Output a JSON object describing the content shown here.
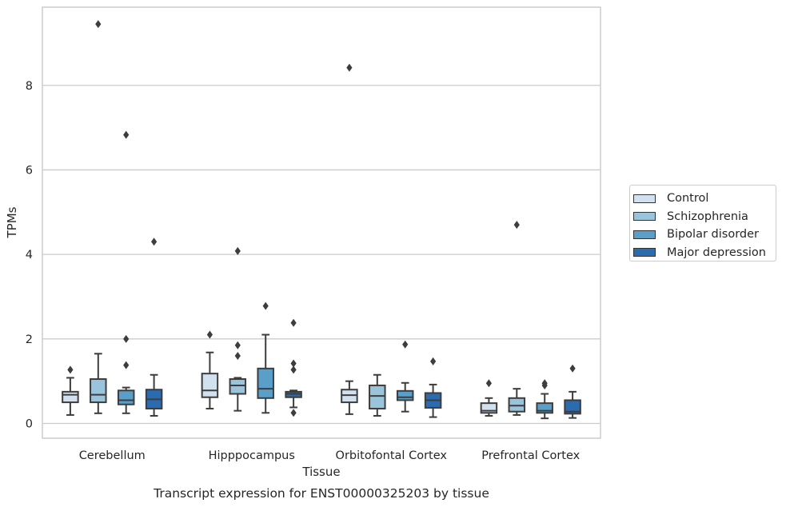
{
  "chart_data": {
    "type": "box",
    "title": "Transcript expression for ENST00000325203 by tissue",
    "xlabel": "Tissue",
    "ylabel": "TPMs",
    "ylim": [
      -0.35,
      9.85
    ],
    "yticks": [
      0,
      2,
      4,
      6,
      8
    ],
    "grid": "horizontal",
    "legend_position": "right",
    "categories": [
      "Cerebellum",
      "Hipppocampus",
      "Orbitofontal Cortex",
      "Prefrontal Cortex"
    ],
    "series": [
      {
        "name": "Control",
        "color": "#d2e1f0",
        "boxes": [
          {
            "whisker_low": 0.2,
            "q1": 0.5,
            "median": 0.68,
            "q3": 0.75,
            "whisker_high": 1.08,
            "outliers": [
              1.27
            ]
          },
          {
            "whisker_low": 0.35,
            "q1": 0.62,
            "median": 0.78,
            "q3": 1.18,
            "whisker_high": 1.68,
            "outliers": [
              2.1
            ]
          },
          {
            "whisker_low": 0.22,
            "q1": 0.5,
            "median": 0.67,
            "q3": 0.8,
            "whisker_high": 1.0,
            "outliers": [
              8.42
            ]
          },
          {
            "whisker_low": 0.18,
            "q1": 0.25,
            "median": 0.3,
            "q3": 0.48,
            "whisker_high": 0.6,
            "outliers": [
              0.95
            ]
          }
        ]
      },
      {
        "name": "Schizophrenia",
        "color": "#9ac3dc",
        "boxes": [
          {
            "whisker_low": 0.24,
            "q1": 0.5,
            "median": 0.68,
            "q3": 1.05,
            "whisker_high": 1.65,
            "outliers": [
              9.45
            ]
          },
          {
            "whisker_low": 0.3,
            "q1": 0.7,
            "median": 0.9,
            "q3": 1.05,
            "whisker_high": 1.08,
            "outliers": [
              4.08,
              1.85,
              1.6
            ]
          },
          {
            "whisker_low": 0.18,
            "q1": 0.35,
            "median": 0.65,
            "q3": 0.9,
            "whisker_high": 1.15,
            "outliers": []
          },
          {
            "whisker_low": 0.2,
            "q1": 0.28,
            "median": 0.42,
            "q3": 0.6,
            "whisker_high": 0.82,
            "outliers": [
              4.7
            ]
          }
        ]
      },
      {
        "name": "Bipolar disorder",
        "color": "#5a9fca",
        "boxes": [
          {
            "whisker_low": 0.24,
            "q1": 0.45,
            "median": 0.55,
            "q3": 0.78,
            "whisker_high": 0.85,
            "outliers": [
              6.83,
              2.0,
              1.38
            ]
          },
          {
            "whisker_low": 0.25,
            "q1": 0.6,
            "median": 0.82,
            "q3": 1.3,
            "whisker_high": 2.1,
            "outliers": [
              2.78
            ]
          },
          {
            "whisker_low": 0.28,
            "q1": 0.55,
            "median": 0.62,
            "q3": 0.77,
            "whisker_high": 0.96,
            "outliers": [
              1.87
            ]
          },
          {
            "whisker_low": 0.12,
            "q1": 0.25,
            "median": 0.3,
            "q3": 0.48,
            "whisker_high": 0.7,
            "outliers": [
              0.95,
              0.9
            ]
          }
        ]
      },
      {
        "name": "Major depression",
        "color": "#2b6cb0",
        "boxes": [
          {
            "whisker_low": 0.18,
            "q1": 0.35,
            "median": 0.57,
            "q3": 0.8,
            "whisker_high": 1.15,
            "outliers": [
              4.3
            ]
          },
          {
            "whisker_low": 0.38,
            "q1": 0.62,
            "median": 0.7,
            "q3": 0.75,
            "whisker_high": 0.78,
            "outliers": [
              2.38,
              1.42,
              1.27,
              0.25
            ]
          },
          {
            "whisker_low": 0.15,
            "q1": 0.37,
            "median": 0.55,
            "q3": 0.72,
            "whisker_high": 0.92,
            "outliers": [
              1.47
            ]
          },
          {
            "whisker_low": 0.13,
            "q1": 0.23,
            "median": 0.28,
            "q3": 0.55,
            "whisker_high": 0.75,
            "outliers": [
              1.3
            ]
          }
        ]
      }
    ]
  }
}
